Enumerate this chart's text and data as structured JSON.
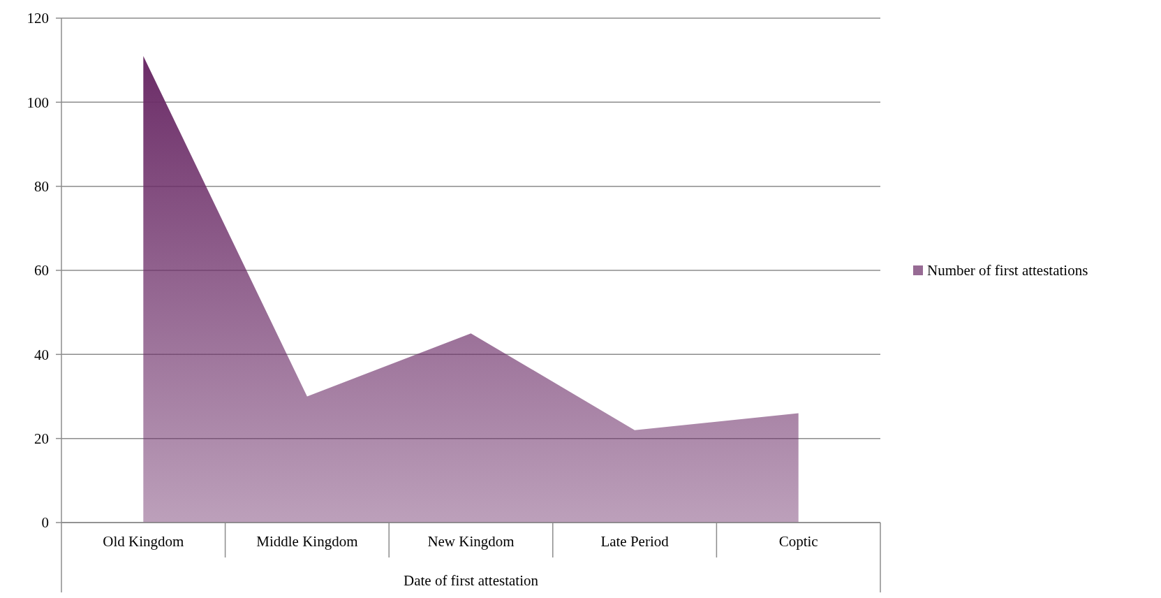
{
  "chart_data": {
    "type": "area",
    "xlabel": "Date of first attestation",
    "categories": [
      "Old Kingdom",
      "Middle Kingdom",
      "New Kingdom",
      "Late Period",
      "Coptic"
    ],
    "series": [
      {
        "name": "Number of first attestations",
        "color": "#6b2c67",
        "values": [
          111,
          30,
          45,
          22,
          26
        ]
      }
    ],
    "ylim": [
      0,
      120
    ],
    "yticks": [
      0,
      20,
      40,
      60,
      80,
      100,
      120
    ],
    "grid": "y",
    "legend": "right"
  }
}
